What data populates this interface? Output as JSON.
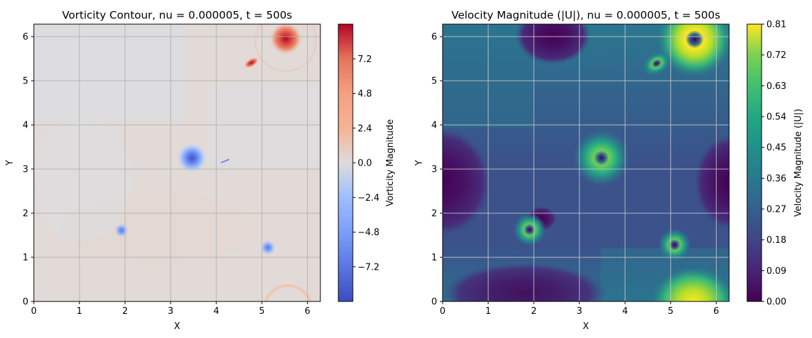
{
  "chart_data": [
    {
      "type": "heatmap",
      "title": "Vorticity Contour, nu = 0.000005, t = 500s",
      "xlabel": "X",
      "ylabel": "Y",
      "xlim": [
        0,
        6.283
      ],
      "ylim": [
        0,
        6.283
      ],
      "xticks": [
        "0",
        "1",
        "2",
        "3",
        "4",
        "5",
        "6"
      ],
      "yticks": [
        "0",
        "1",
        "2",
        "3",
        "4",
        "5",
        "6"
      ],
      "grid": true,
      "colormap": "coolwarm",
      "colorbar": {
        "label": "Vorticity Magnitude",
        "range": [
          -9.6,
          9.6
        ],
        "ticks": [
          -7.2,
          -4.8,
          -2.4,
          0.0,
          2.4,
          4.8,
          7.2
        ],
        "tick_labels": [
          "−7.2",
          "−4.8",
          "−2.4",
          "0.0",
          "2.4",
          "4.8",
          "7.2"
        ]
      },
      "features": [
        {
          "kind": "vortex",
          "x": 5.55,
          "y": 5.95,
          "value": 9.0
        },
        {
          "kind": "vortex",
          "x": 4.75,
          "y": 5.38,
          "value": 7.0
        },
        {
          "kind": "vortex",
          "x": 3.5,
          "y": 3.25,
          "value": -6.5
        },
        {
          "kind": "vortex",
          "x": 1.92,
          "y": 1.6,
          "value": -4.2
        },
        {
          "kind": "vortex",
          "x": 5.12,
          "y": 1.2,
          "value": -4.3
        },
        {
          "kind": "filament",
          "x": 4.25,
          "y": 3.15,
          "value": -3.5
        },
        {
          "kind": "ring",
          "x": 5.5,
          "y": 5.9,
          "value": 1.5
        },
        {
          "kind": "ring",
          "x": 5.55,
          "y": -0.1,
          "value": 1.5
        }
      ]
    },
    {
      "type": "heatmap",
      "title": "Velocity Magnitude (|U|), nu = 0.000005, t = 500s",
      "xlabel": "X",
      "ylabel": "Y",
      "xlim": [
        0,
        6.283
      ],
      "ylim": [
        0,
        6.283
      ],
      "xticks": [
        "0",
        "1",
        "2",
        "3",
        "4",
        "5",
        "6"
      ],
      "yticks": [
        "0",
        "1",
        "2",
        "3",
        "4",
        "5",
        "6"
      ],
      "grid": true,
      "colormap": "viridis",
      "colorbar": {
        "label": "Velocity Magnitude (|U|)",
        "range": [
          0.0,
          0.81
        ],
        "ticks": [
          0.0,
          0.09,
          0.18,
          0.27,
          0.36,
          0.45,
          0.54,
          0.63,
          0.72,
          0.81
        ],
        "tick_labels": [
          "0.00",
          "0.09",
          "0.18",
          "0.27",
          "0.36",
          "0.45",
          "0.54",
          "0.63",
          "0.72",
          "0.81"
        ]
      },
      "features": [
        {
          "kind": "ring",
          "x": 5.55,
          "y": 5.9,
          "value": 0.8
        },
        {
          "kind": "ring",
          "x": 4.75,
          "y": 5.35,
          "value": 0.72
        },
        {
          "kind": "ring",
          "x": 3.5,
          "y": 3.25,
          "value": 0.55
        },
        {
          "kind": "ring",
          "x": 1.9,
          "y": 1.58,
          "value": 0.45
        },
        {
          "kind": "ring",
          "x": 5.12,
          "y": 1.2,
          "value": 0.45
        },
        {
          "kind": "blob",
          "x": 5.5,
          "y": 0.0,
          "value": 0.8
        },
        {
          "kind": "low",
          "x": 0.0,
          "y": 2.7,
          "value": 0.03
        },
        {
          "kind": "low",
          "x": 6.28,
          "y": 2.7,
          "value": 0.03
        },
        {
          "kind": "low",
          "x": 2.45,
          "y": 6.0,
          "value": 0.05
        },
        {
          "kind": "low",
          "x": 2.2,
          "y": 1.85,
          "value": 0.02
        }
      ]
    }
  ]
}
